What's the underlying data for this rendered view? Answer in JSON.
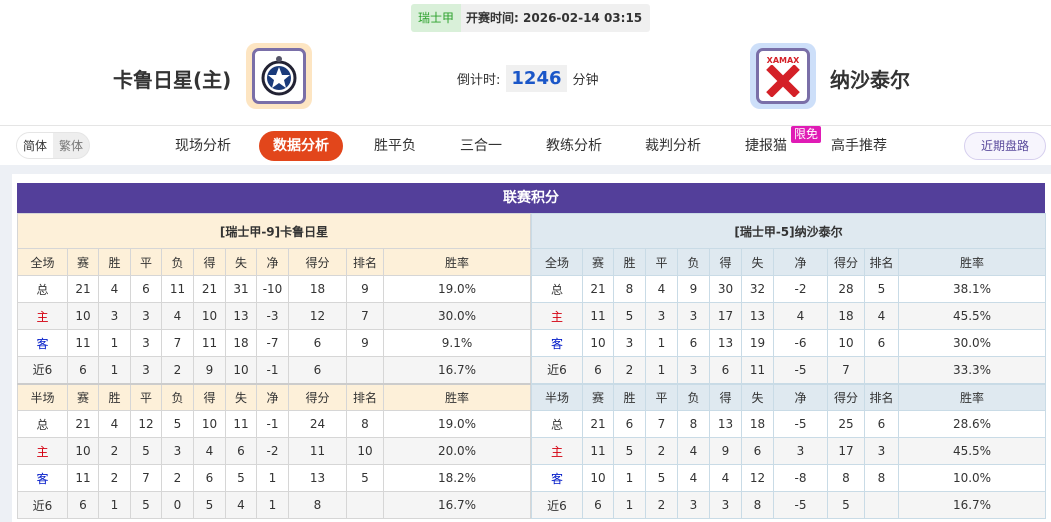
{
  "match": {
    "league": "瑞士甲",
    "time_label": "开赛时间:",
    "time": "2026-02-14 03:15",
    "home": "卡鲁日星(主)",
    "away": "纳沙泰尔",
    "countdown_label": "倒计时:",
    "countdown": "1246",
    "countdown_unit": "分钟",
    "away_logo_text": "XAMAX"
  },
  "nav": {
    "lang": [
      "简体",
      "繁体"
    ],
    "items": [
      "现场分析",
      "数据分析",
      "胜平负",
      "三合一",
      "教练分析",
      "裁判分析",
      "捷报猫",
      "高手推荐"
    ],
    "active": "数据分析",
    "badge": "限免",
    "recent": "近期盘路"
  },
  "colors": {
    "accent": "#e2461b",
    "title_bg": "#533f9a",
    "home_label": "#d4000f",
    "away_label": "#0019c8"
  },
  "standings": {
    "title": "联赛积分",
    "columns": [
      "赛",
      "胜",
      "平",
      "负",
      "得",
      "失",
      "净",
      "得分",
      "排名",
      "胜率"
    ],
    "home": {
      "header": "[瑞士甲-9]卡鲁日星",
      "full": {
        "label": "全场",
        "rows": [
          [
            "总",
            "21",
            "4",
            "6",
            "11",
            "21",
            "31",
            "-10",
            "18",
            "9",
            "19.0%"
          ],
          [
            "主",
            "10",
            "3",
            "3",
            "4",
            "10",
            "13",
            "-3",
            "12",
            "7",
            "30.0%"
          ],
          [
            "客",
            "11",
            "1",
            "3",
            "7",
            "11",
            "18",
            "-7",
            "6",
            "9",
            "9.1%"
          ],
          [
            "近6",
            "6",
            "1",
            "3",
            "2",
            "9",
            "10",
            "-1",
            "6",
            "",
            "16.7%"
          ]
        ]
      },
      "half": {
        "label": "半场",
        "rows": [
          [
            "总",
            "21",
            "4",
            "12",
            "5",
            "10",
            "11",
            "-1",
            "24",
            "8",
            "19.0%"
          ],
          [
            "主",
            "10",
            "2",
            "5",
            "3",
            "4",
            "6",
            "-2",
            "11",
            "10",
            "20.0%"
          ],
          [
            "客",
            "11",
            "2",
            "7",
            "2",
            "6",
            "5",
            "1",
            "13",
            "5",
            "18.2%"
          ],
          [
            "近6",
            "6",
            "1",
            "5",
            "0",
            "5",
            "4",
            "1",
            "8",
            "",
            "16.7%"
          ]
        ]
      }
    },
    "away": {
      "header": "[瑞士甲-5]纳沙泰尔",
      "full": {
        "label": "全场",
        "rows": [
          [
            "总",
            "21",
            "8",
            "4",
            "9",
            "30",
            "32",
            "-2",
            "28",
            "5",
            "38.1%"
          ],
          [
            "主",
            "11",
            "5",
            "3",
            "3",
            "17",
            "13",
            "4",
            "18",
            "4",
            "45.5%"
          ],
          [
            "客",
            "10",
            "3",
            "1",
            "6",
            "13",
            "19",
            "-6",
            "10",
            "6",
            "30.0%"
          ],
          [
            "近6",
            "6",
            "2",
            "1",
            "3",
            "6",
            "11",
            "-5",
            "7",
            "",
            "33.3%"
          ]
        ]
      },
      "half": {
        "label": "半场",
        "rows": [
          [
            "总",
            "21",
            "6",
            "7",
            "8",
            "13",
            "18",
            "-5",
            "25",
            "6",
            "28.6%"
          ],
          [
            "主",
            "11",
            "5",
            "2",
            "4",
            "9",
            "6",
            "3",
            "17",
            "3",
            "45.5%"
          ],
          [
            "客",
            "10",
            "1",
            "5",
            "4",
            "4",
            "12",
            "-8",
            "8",
            "8",
            "10.0%"
          ],
          [
            "近6",
            "6",
            "1",
            "2",
            "3",
            "3",
            "8",
            "-5",
            "5",
            "",
            "16.7%"
          ]
        ]
      }
    }
  }
}
